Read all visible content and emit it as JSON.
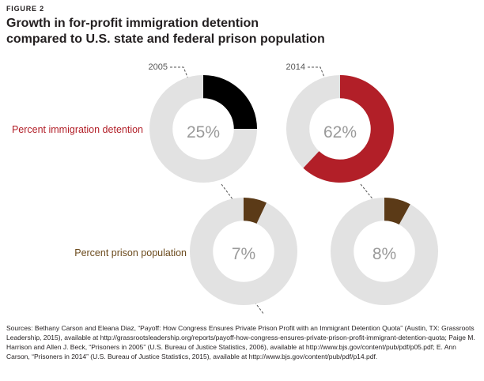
{
  "figure_label": "FIGURE 2",
  "title_lines": [
    "Growth in for-profit immigration detention",
    "compared to U.S. state and federal prison population"
  ],
  "colors": {
    "track": "#e2e2e2",
    "immigration_2005": "#000000",
    "immigration_2014": "#b21f28",
    "prison": "#5b3a17",
    "immigration_label": "#b21f28",
    "prison_label": "#6b4a1c",
    "value_text": "#9a9a9a",
    "leader": "#555555"
  },
  "chart_data": {
    "type": "pie",
    "columns": [
      "2005",
      "2014"
    ],
    "rows": [
      {
        "label": "Percent immigration detention",
        "values": [
          25,
          62
        ],
        "display": [
          "25%",
          "62%"
        ]
      },
      {
        "label": "Percent prison population",
        "values": [
          7,
          8
        ],
        "display": [
          "7%",
          "8%"
        ]
      }
    ]
  },
  "sources_text": "Sources: Bethany Carson and Eleana Diaz, “Payoff: How Congress Ensures Private Prison Profit with an Immigrant Detention Quota” (Austin, TX: Grassroots Leadership, 2015), available at http://grassrootsleadership.org/reports/payoff-how-congress-ensures-private-prison-profit-immigrant-detention-quota; Paige M. Harrison and Allen J. Beck, “Prisoners in 2005” (U.S. Bureau of Justice Statistics, 2006), available at http://www.bjs.gov/content/pub/pdf/p05.pdf; E. Ann Carson, “Prisoners in 2014” (U.S. Bureau of Justice Statistics, 2015), available at http://www.bjs.gov/content/pub/pdf/p14.pdf."
}
